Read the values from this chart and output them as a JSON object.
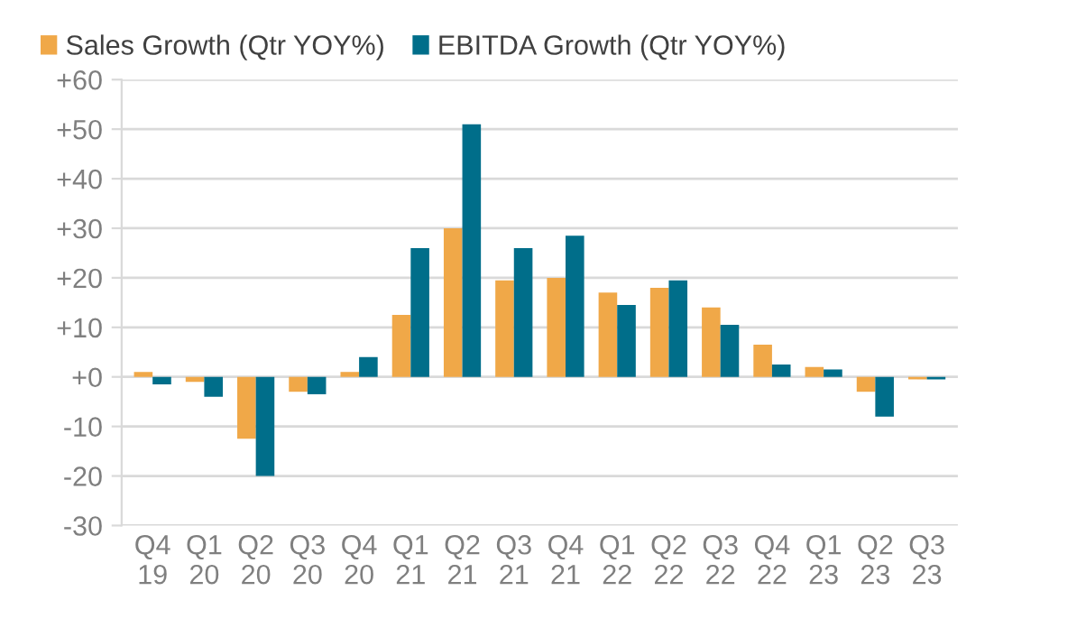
{
  "chart_data": {
    "type": "bar",
    "categories": [
      "Q4\n19",
      "Q1\n20",
      "Q2\n20",
      "Q3\n20",
      "Q4\n20",
      "Q1\n21",
      "Q2\n21",
      "Q3\n21",
      "Q4\n21",
      "Q1\n22",
      "Q2\n22",
      "Q3\n22",
      "Q4\n22",
      "Q1\n23",
      "Q2\n23",
      "Q3\n23"
    ],
    "series": [
      {
        "name": "Sales Growth (Qtr YOY%)",
        "color": "#f0a848",
        "values": [
          1,
          -1,
          -12.5,
          -3,
          1,
          12.5,
          30,
          19.5,
          20,
          17,
          18,
          14,
          6.5,
          2,
          -3,
          -0.5
        ]
      },
      {
        "name": "EBITDA Growth (Qtr YOY%)",
        "color": "#006e8a",
        "values": [
          -1.5,
          -4,
          -20,
          -3.5,
          4,
          26,
          51,
          26,
          28.5,
          14.5,
          19.5,
          10.5,
          2.5,
          1.5,
          -8,
          -0.5
        ]
      }
    ],
    "ylim": [
      -30,
      60
    ],
    "yticks": [
      {
        "value": -30,
        "label": "-30"
      },
      {
        "value": -20,
        "label": "-20"
      },
      {
        "value": -10,
        "label": "-10"
      },
      {
        "value": 0,
        "label": "+0"
      },
      {
        "value": 10,
        "label": "+10"
      },
      {
        "value": 20,
        "label": "+20"
      },
      {
        "value": 30,
        "label": "+30"
      },
      {
        "value": 40,
        "label": "+40"
      },
      {
        "value": 50,
        "label": "+50"
      },
      {
        "value": 60,
        "label": "+60"
      }
    ],
    "grid": "y",
    "legend": "top left"
  }
}
